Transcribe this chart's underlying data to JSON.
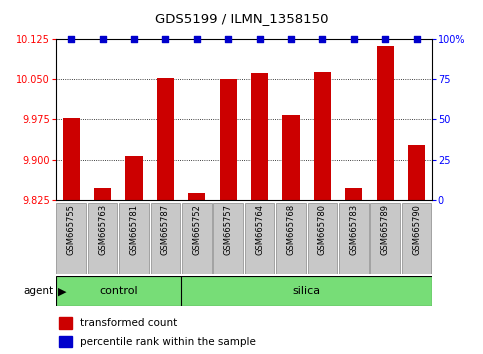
{
  "title": "GDS5199 / ILMN_1358150",
  "samples": [
    "GSM665755",
    "GSM665763",
    "GSM665781",
    "GSM665787",
    "GSM665752",
    "GSM665757",
    "GSM665764",
    "GSM665768",
    "GSM665780",
    "GSM665783",
    "GSM665789",
    "GSM665790"
  ],
  "red_values": [
    9.978,
    9.848,
    9.907,
    10.052,
    9.838,
    10.05,
    10.062,
    9.983,
    10.063,
    9.848,
    10.112,
    9.927
  ],
  "blue_values": [
    100,
    100,
    100,
    100,
    100,
    100,
    100,
    100,
    100,
    100,
    100,
    100
  ],
  "n_control": 4,
  "n_silica": 8,
  "ylim_left": [
    9.825,
    10.125
  ],
  "ylim_right": [
    0,
    100
  ],
  "yticks_left": [
    9.825,
    9.9,
    9.975,
    10.05,
    10.125
  ],
  "yticks_right": [
    0,
    25,
    50,
    75,
    100
  ],
  "bar_color": "#cc0000",
  "dot_color": "#0000cc",
  "sample_box_color": "#c8c8c8",
  "agent_band_color": "#77dd77",
  "legend_red_label": "transformed count",
  "legend_blue_label": "percentile rank within the sample",
  "agent_label": "agent",
  "control_label": "control",
  "silica_label": "silica"
}
